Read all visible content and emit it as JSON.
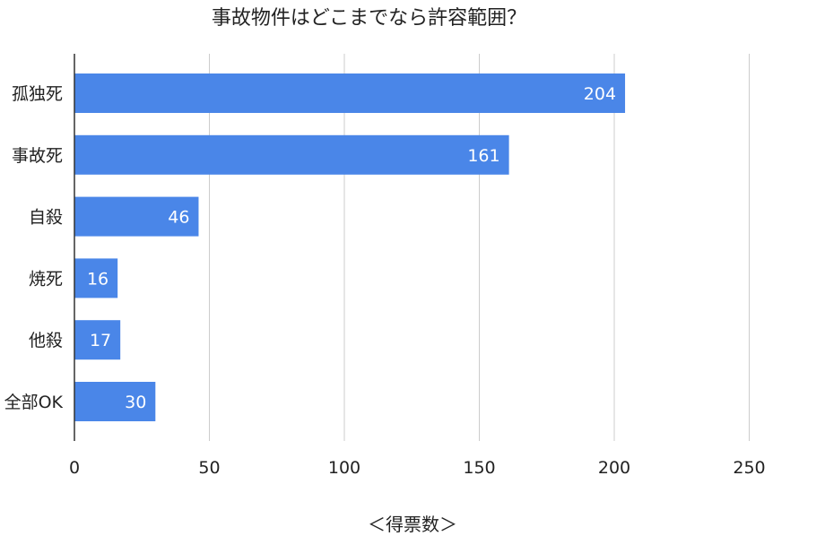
{
  "chart_data": {
    "type": "bar",
    "orientation": "horizontal",
    "title": "事故物件はどこまでなら許容範囲？",
    "xlabel": "＜得票数＞",
    "ylabel": "",
    "categories": [
      "孤独死",
      "事故死",
      "自殺",
      "焼死",
      "他殺",
      "全部OK"
    ],
    "values": [
      204,
      161,
      46,
      16,
      17,
      30
    ],
    "xlim": [
      0,
      250
    ],
    "xticks": [
      "0",
      "50",
      "100",
      "150",
      "200",
      "250"
    ],
    "grid": true,
    "legend": "none",
    "bar_color": "#4a86e8",
    "grid_color": "#cccccc",
    "axis_color": "#333333"
  }
}
